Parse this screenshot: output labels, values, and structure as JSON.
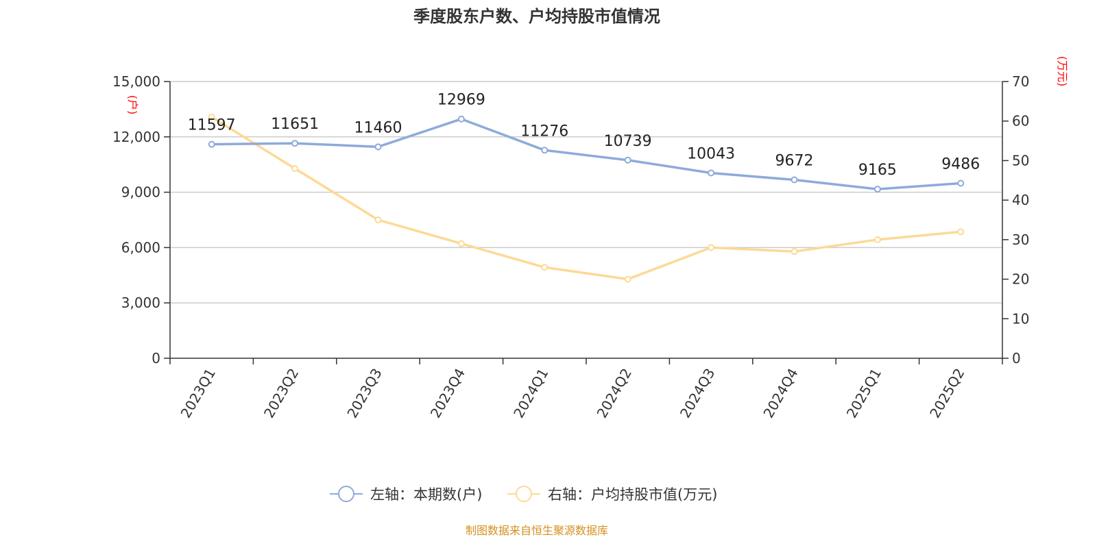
{
  "chart_data": {
    "type": "line",
    "title": "季度股东户数、户均持股市值情况",
    "categories": [
      "2023Q1",
      "2023Q2",
      "2023Q3",
      "2023Q4",
      "2024Q1",
      "2024Q2",
      "2024Q3",
      "2024Q4",
      "2025Q1",
      "2025Q2"
    ],
    "left_axis": {
      "unit": "(户)",
      "ylim": [
        0,
        15000
      ],
      "ticks": [
        "0",
        "3,000",
        "6,000",
        "9,000",
        "12,000",
        "15,000"
      ],
      "tick_values": [
        0,
        3000,
        6000,
        9000,
        12000,
        15000
      ]
    },
    "right_axis": {
      "unit": "(万元)",
      "ylim": [
        0,
        70
      ],
      "ticks": [
        "0",
        "10",
        "20",
        "30",
        "40",
        "50",
        "60",
        "70"
      ],
      "tick_values": [
        0,
        10,
        20,
        30,
        40,
        50,
        60,
        70
      ]
    },
    "grid": true,
    "legend_position": "bottom-center",
    "series": [
      {
        "name": "左轴：本期数(户)",
        "axis": "left",
        "color": "#8eaadb",
        "values": [
          11597,
          11651,
          11460,
          12969,
          11276,
          10739,
          10043,
          9672,
          9165,
          9486
        ],
        "labels": [
          "11597",
          "11651",
          "11460",
          "12969",
          "11276",
          "10739",
          "10043",
          "9672",
          "9165",
          "9486"
        ]
      },
      {
        "name": "右轴：户均持股市值(万元)",
        "axis": "right",
        "color": "#fdd995",
        "values": [
          61,
          48,
          35,
          29,
          23,
          20,
          28,
          27,
          30,
          32
        ]
      }
    ]
  },
  "colors": {
    "unit": "#ff0000",
    "source": "#d4901f",
    "grid": "#cccccc",
    "axis": "#333333"
  },
  "source": "制图数据来自恒生聚源数据库"
}
